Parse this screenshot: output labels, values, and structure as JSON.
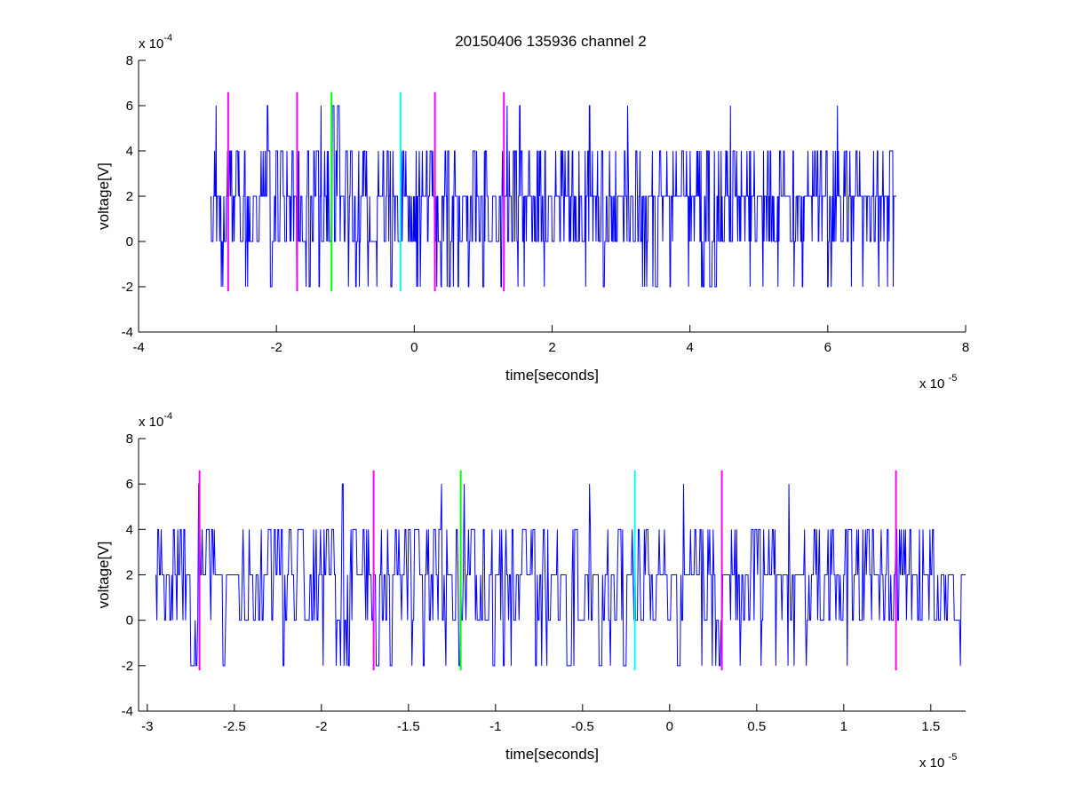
{
  "figure": {
    "title": "20150406 135936 channel 2"
  },
  "colors": {
    "signal": "#0000ff",
    "marker_magenta": "#ff00ff",
    "marker_green": "#00ff00",
    "marker_cyan": "#00ffff",
    "axes": "#000000",
    "background": "#ffffff"
  },
  "chart_data": [
    {
      "type": "line",
      "title": "20150406 135936 channel 2",
      "xlabel": "time[seconds]",
      "ylabel": "voltage[V]",
      "x_scale_label": "x 10",
      "x_scale_exponent": "-5",
      "y_scale_label": "x 10",
      "y_scale_exponent": "-4",
      "xlim": [
        -4e-05,
        8e-05
      ],
      "ylim": [
        -0.0004,
        0.0008
      ],
      "xticks": [
        -4e-05,
        -2e-05,
        0,
        2e-05,
        4e-05,
        6e-05,
        8e-05
      ],
      "xtick_labels": [
        "-4",
        "-2",
        "0",
        "2",
        "4",
        "6",
        "8"
      ],
      "yticks": [
        -0.0004,
        -0.0002,
        0,
        0.0002,
        0.0004,
        0.0006,
        0.0008
      ],
      "ytick_labels": [
        "-4",
        "-2",
        "0",
        "2",
        "4",
        "6",
        "8"
      ],
      "grid": false,
      "series": [
        {
          "kind": "quantized-noise",
          "x_range": [
            -2.95e-05,
            7e-05
          ],
          "levels": [
            -0.0002,
            0,
            0.0002,
            0.0004,
            0.0006
          ],
          "baseline": 0.0002,
          "color": "#0000ff"
        }
      ],
      "markers": [
        {
          "x": -2.7e-05,
          "color": "#ff00ff",
          "ymin": -0.00022,
          "ymax": 0.00066
        },
        {
          "x": -1.7e-05,
          "color": "#ff00ff",
          "ymin": -0.00022,
          "ymax": 0.00066
        },
        {
          "x": -1.2e-05,
          "color": "#00ff00",
          "ymin": -0.00022,
          "ymax": 0.00066
        },
        {
          "x": -2e-06,
          "color": "#00ffff",
          "ymin": -0.00022,
          "ymax": 0.00066
        },
        {
          "x": 3e-06,
          "color": "#ff00ff",
          "ymin": -0.00022,
          "ymax": 0.00066
        },
        {
          "x": 1.3e-05,
          "color": "#ff00ff",
          "ymin": -0.00022,
          "ymax": 0.00066
        }
      ]
    },
    {
      "type": "line",
      "title": "",
      "xlabel": "time[seconds]",
      "ylabel": "voltage[V]",
      "x_scale_label": "x 10",
      "x_scale_exponent": "-5",
      "y_scale_label": "x 10",
      "y_scale_exponent": "-4",
      "xlim": [
        -3.05e-05,
        1.7e-05
      ],
      "ylim": [
        -0.0004,
        0.0008
      ],
      "xticks": [
        -3e-05,
        -2.5e-05,
        -2e-05,
        -1.5e-05,
        -1e-05,
        -5e-06,
        0,
        5e-06,
        1e-05,
        1.5e-05
      ],
      "xtick_labels": [
        "-3",
        "-2.5",
        "-2",
        "-1.5",
        "-1",
        "-0.5",
        "0",
        "0.5",
        "1",
        "1.5"
      ],
      "yticks": [
        -0.0004,
        -0.0002,
        0,
        0.0002,
        0.0004,
        0.0006,
        0.0008
      ],
      "ytick_labels": [
        "-4",
        "-2",
        "0",
        "2",
        "4",
        "6",
        "8"
      ],
      "grid": false,
      "series": [
        {
          "kind": "quantized-noise",
          "x_range": [
            -2.95e-05,
            1.7e-05
          ],
          "levels": [
            -0.0002,
            0,
            0.0002,
            0.0004,
            0.0006
          ],
          "baseline": 0.0002,
          "color": "#0000ff"
        }
      ],
      "markers": [
        {
          "x": -2.7e-05,
          "color": "#ff00ff",
          "ymin": -0.00022,
          "ymax": 0.00066
        },
        {
          "x": -1.7e-05,
          "color": "#ff00ff",
          "ymin": -0.00022,
          "ymax": 0.00066
        },
        {
          "x": -1.2e-05,
          "color": "#00ff00",
          "ymin": -0.00022,
          "ymax": 0.00066
        },
        {
          "x": -2e-06,
          "color": "#00ffff",
          "ymin": -0.00022,
          "ymax": 0.00066
        },
        {
          "x": 3e-06,
          "color": "#ff00ff",
          "ymin": -0.00022,
          "ymax": 0.00066
        },
        {
          "x": 1.3e-05,
          "color": "#ff00ff",
          "ymin": -0.00022,
          "ymax": 0.00066
        }
      ]
    }
  ]
}
